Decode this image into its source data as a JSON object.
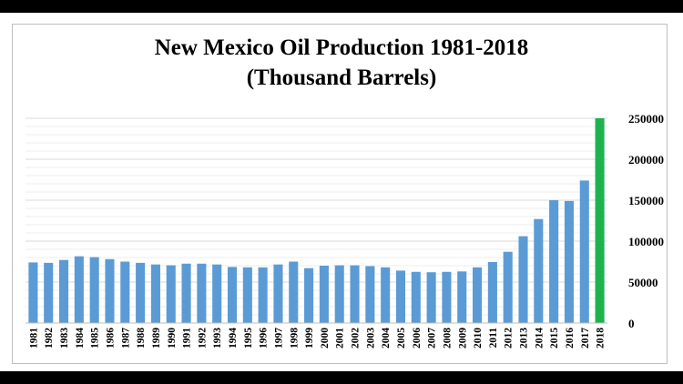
{
  "colors": {
    "bar": "#5b9bd5",
    "highlight_bar": "#1fb14e",
    "gridline": "#d9d9d9",
    "frame": "#ffffff",
    "letterbox": "#000000"
  },
  "chart_data": {
    "type": "bar",
    "title_line1": "New Mexico Oil Production 1981-2018",
    "title_line2": "(Thousand Barrels)",
    "xlabel": "",
    "ylabel": "",
    "y_axis_side": "right",
    "ylim": [
      0,
      250000
    ],
    "yticks": [
      0,
      50000,
      100000,
      150000,
      200000,
      250000
    ],
    "grid": true,
    "legend": "none",
    "highlighted_category": "2018",
    "categories": [
      "1981",
      "1982",
      "1983",
      "1984",
      "1985",
      "1986",
      "1987",
      "1988",
      "1989",
      "1990",
      "1991",
      "1992",
      "1993",
      "1994",
      "1995",
      "1996",
      "1997",
      "1998",
      "1999",
      "2000",
      "2001",
      "2002",
      "2003",
      "2004",
      "2005",
      "2006",
      "2007",
      "2008",
      "2009",
      "2010",
      "2011",
      "2012",
      "2013",
      "2014",
      "2015",
      "2016",
      "2017",
      "2018"
    ],
    "values": [
      74000,
      73500,
      77000,
      81500,
      80500,
      78000,
      75000,
      73500,
      71500,
      70500,
      72500,
      72500,
      71500,
      68500,
      68000,
      68000,
      71500,
      75000,
      67000,
      70000,
      70500,
      70500,
      69500,
      68000,
      64000,
      62500,
      62000,
      62500,
      63000,
      68000,
      74500,
      87000,
      106000,
      127000,
      150000,
      149000,
      174000,
      250000
    ]
  }
}
